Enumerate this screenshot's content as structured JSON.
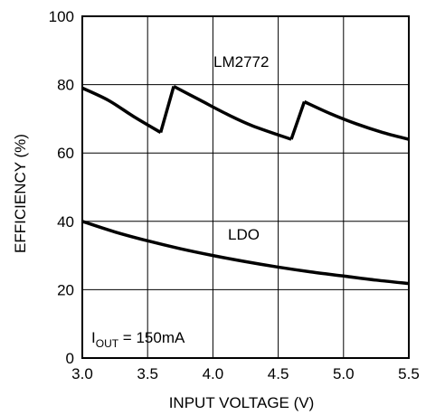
{
  "chart_data": {
    "type": "line",
    "title": "",
    "xlabel": "INPUT VOLTAGE (V)",
    "ylabel": "EFFICIENCY (%)",
    "xlim": [
      3.0,
      5.5
    ],
    "ylim": [
      0,
      100
    ],
    "xticks": [
      3.0,
      3.5,
      4.0,
      4.5,
      5.0,
      5.5
    ],
    "xtick_labels": [
      "3.0",
      "3.5",
      "4.0",
      "4.5",
      "5.0",
      "5.5"
    ],
    "yticks": [
      0,
      20,
      40,
      60,
      80,
      100
    ],
    "ytick_labels": [
      "0",
      "20",
      "40",
      "60",
      "80",
      "100"
    ],
    "grid": true,
    "series": [
      {
        "name": "LM2772",
        "x": [
          3.0,
          3.2,
          3.4,
          3.6,
          3.7,
          3.9,
          4.1,
          4.3,
          4.6,
          4.7,
          4.9,
          5.1,
          5.3,
          5.5
        ],
        "y": [
          79,
          75.4,
          70.5,
          66,
          79.5,
          75.5,
          71.5,
          68,
          64,
          75,
          71.5,
          68.5,
          66,
          64
        ]
      },
      {
        "name": "LDO",
        "x": [
          3.0,
          3.25,
          3.5,
          3.75,
          4.0,
          4.25,
          4.5,
          4.75,
          5.0,
          5.25,
          5.5
        ],
        "y": [
          40,
          36.9,
          34.3,
          32,
          30,
          28.2,
          26.6,
          25.2,
          24,
          22.8,
          21.8
        ]
      }
    ],
    "annotations": [
      {
        "id": "lm2772",
        "text": "LM2772"
      },
      {
        "id": "ldo",
        "text": "LDO"
      },
      {
        "id": "iout",
        "prefix": "I",
        "subscript": "OUT",
        "suffix": " = 150mA"
      }
    ]
  }
}
